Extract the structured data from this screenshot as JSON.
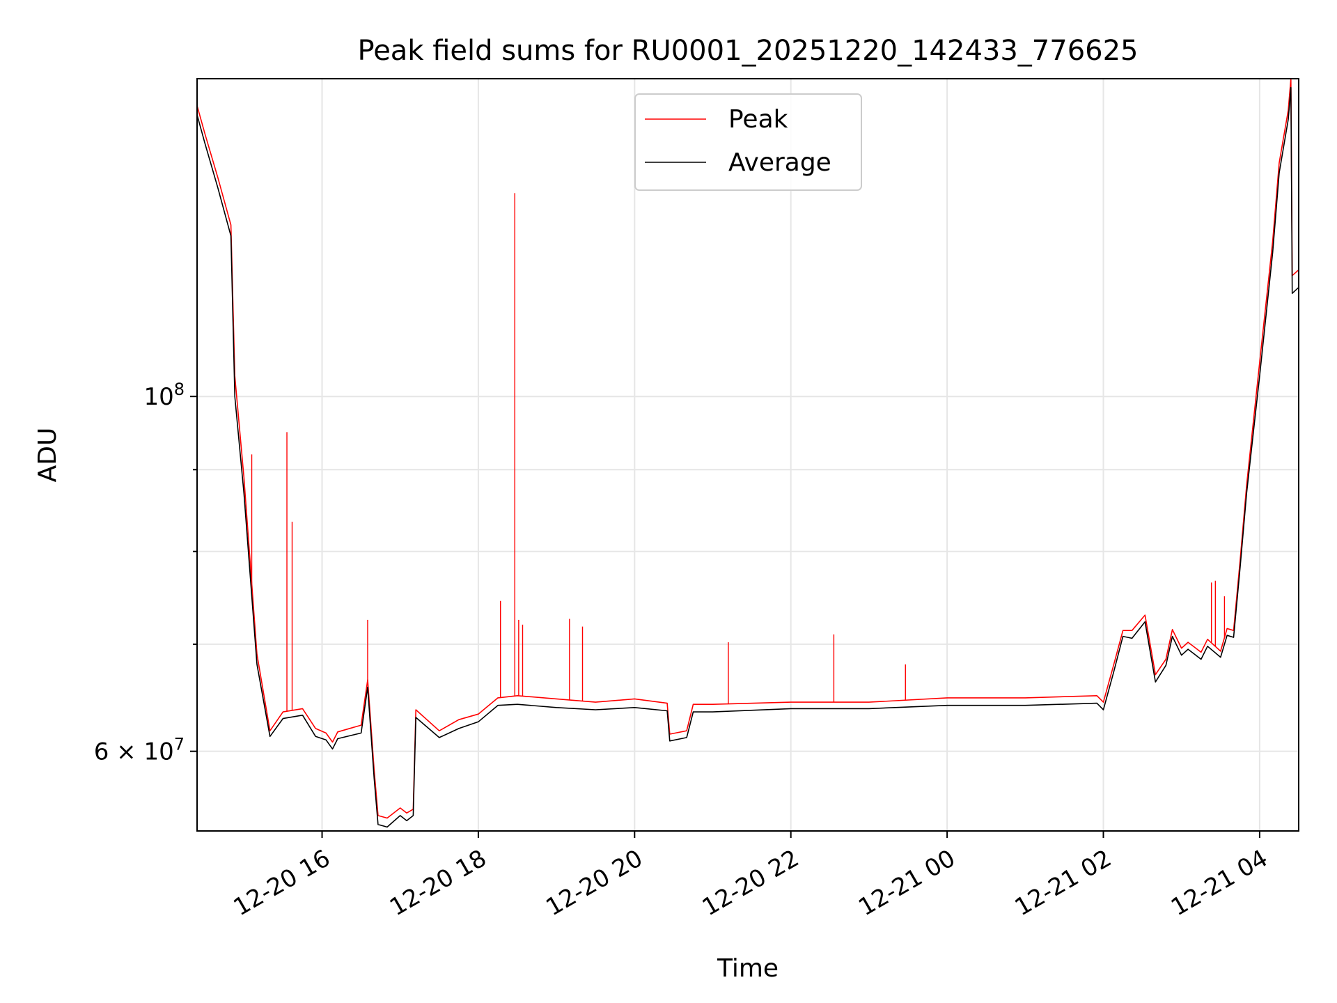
{
  "chart_data": {
    "type": "line",
    "title": "Peak field sums for RU0001_20251220_142433_776625",
    "xlabel": "Time",
    "ylabel": "ADU",
    "yscale": "log",
    "xlim": [
      "2025-12-20 14:24",
      "2025-12-21 04:30"
    ],
    "ylim": [
      53500000,
      158000000
    ],
    "grid": true,
    "legend_position": "top-center",
    "x_tick_labels": [
      "12-20 16",
      "12-20 18",
      "12-20 20",
      "12-20 22",
      "12-21 00",
      "12-21 02",
      "12-21 04"
    ],
    "x_tick_values": [
      "2025-12-20 16:00",
      "2025-12-20 18:00",
      "2025-12-20 20:00",
      "2025-12-20 22:00",
      "2025-12-21 00:00",
      "2025-12-21 02:00",
      "2025-12-21 04:00"
    ],
    "y_tick_labels": [
      {
        "base": "10",
        "exp": "8",
        "prefix": ""
      },
      {
        "base": "10",
        "exp": "7",
        "prefix": "6 × "
      }
    ],
    "y_tick_values": [
      100000000,
      60000000
    ],
    "y_minor_ticks": [
      70000000,
      80000000,
      90000000
    ],
    "series": [
      {
        "name": "Peak",
        "color": "#ff0000",
        "x": [
          "2025-12-20 14:24",
          "2025-12-20 14:30",
          "2025-12-20 14:40",
          "2025-12-20 14:50",
          "2025-12-20 14:53",
          "2025-12-20 15:00",
          "2025-12-20 15:10",
          "2025-12-20 15:20",
          "2025-12-20 15:30",
          "2025-12-20 15:45",
          "2025-12-20 15:55",
          "2025-12-20 16:03",
          "2025-12-20 16:08",
          "2025-12-20 16:12",
          "2025-12-20 16:30",
          "2025-12-20 16:35",
          "2025-12-20 16:40",
          "2025-12-20 16:43",
          "2025-12-20 16:50",
          "2025-12-20 17:00",
          "2025-12-20 17:05",
          "2025-12-20 17:10",
          "2025-12-20 17:12",
          "2025-12-20 17:30",
          "2025-12-20 17:45",
          "2025-12-20 18:00",
          "2025-12-20 18:15",
          "2025-12-20 18:30",
          "2025-12-20 19:00",
          "2025-12-20 19:30",
          "2025-12-20 20:00",
          "2025-12-20 20:25",
          "2025-12-20 20:27",
          "2025-12-20 20:40",
          "2025-12-20 20:45",
          "2025-12-20 21:00",
          "2025-12-20 22:00",
          "2025-12-20 23:00",
          "2025-12-21 00:00",
          "2025-12-21 01:00",
          "2025-12-21 01:55",
          "2025-12-21 02:00",
          "2025-12-21 02:08",
          "2025-12-21 02:15",
          "2025-12-21 02:22",
          "2025-12-21 02:32",
          "2025-12-21 02:40",
          "2025-12-21 02:48",
          "2025-12-21 02:53",
          "2025-12-21 03:00",
          "2025-12-21 03:05",
          "2025-12-21 03:15",
          "2025-12-21 03:20",
          "2025-12-21 03:30",
          "2025-12-21 03:35",
          "2025-12-21 03:40",
          "2025-12-21 03:45",
          "2025-12-21 03:50",
          "2025-12-21 04:00",
          "2025-12-21 04:10",
          "2025-12-21 04:15",
          "2025-12-21 04:22",
          "2025-12-21 04:24",
          "2025-12-21 04:25",
          "2025-12-21 04:30"
        ],
        "y": [
          152000000,
          146000000,
          137000000,
          128000000,
          103000000,
          89000000,
          69000000,
          61800000,
          63500000,
          63800000,
          62000000,
          61600000,
          60800000,
          61700000,
          62300000,
          66500000,
          58400000,
          54700000,
          54500000,
          55300000,
          54900000,
          55200000,
          63700000,
          61800000,
          62800000,
          63300000,
          64800000,
          65000000,
          64700000,
          64400000,
          64700000,
          64300000,
          61500000,
          61800000,
          64200000,
          64200000,
          64400000,
          64400000,
          64800000,
          64800000,
          65000000,
          64400000,
          68000000,
          71400000,
          71400000,
          73000000,
          67000000,
          68500000,
          71500000,
          69600000,
          70200000,
          69200000,
          70500000,
          69300000,
          71600000,
          71400000,
          79000000,
          88000000,
          105000000,
          125000000,
          140000000,
          151000000,
          158000000,
          119000000,
          120000000
        ]
      },
      {
        "name": "Average",
        "color": "#000000",
        "x": [
          "2025-12-20 14:24",
          "2025-12-20 14:30",
          "2025-12-20 14:40",
          "2025-12-20 14:50",
          "2025-12-20 14:53",
          "2025-12-20 15:00",
          "2025-12-20 15:10",
          "2025-12-20 15:20",
          "2025-12-20 15:30",
          "2025-12-20 15:45",
          "2025-12-20 15:55",
          "2025-12-20 16:03",
          "2025-12-20 16:08",
          "2025-12-20 16:12",
          "2025-12-20 16:30",
          "2025-12-20 16:35",
          "2025-12-20 16:40",
          "2025-12-20 16:43",
          "2025-12-20 16:50",
          "2025-12-20 17:00",
          "2025-12-20 17:05",
          "2025-12-20 17:10",
          "2025-12-20 17:12",
          "2025-12-20 17:30",
          "2025-12-20 17:45",
          "2025-12-20 18:00",
          "2025-12-20 18:15",
          "2025-12-20 18:30",
          "2025-12-20 19:00",
          "2025-12-20 19:30",
          "2025-12-20 20:00",
          "2025-12-20 20:25",
          "2025-12-20 20:27",
          "2025-12-20 20:40",
          "2025-12-20 20:45",
          "2025-12-20 21:00",
          "2025-12-20 22:00",
          "2025-12-20 23:00",
          "2025-12-21 00:00",
          "2025-12-21 01:00",
          "2025-12-21 01:55",
          "2025-12-21 02:00",
          "2025-12-21 02:08",
          "2025-12-21 02:15",
          "2025-12-21 02:22",
          "2025-12-21 02:32",
          "2025-12-21 02:40",
          "2025-12-21 02:48",
          "2025-12-21 02:53",
          "2025-12-21 03:00",
          "2025-12-21 03:05",
          "2025-12-21 03:15",
          "2025-12-21 03:20",
          "2025-12-21 03:30",
          "2025-12-21 03:35",
          "2025-12-21 03:40",
          "2025-12-21 03:45",
          "2025-12-21 03:50",
          "2025-12-21 04:00",
          "2025-12-21 04:10",
          "2025-12-21 04:15",
          "2025-12-21 04:22",
          "2025-12-21 04:24",
          "2025-12-21 04:25",
          "2025-12-21 04:30"
        ],
        "y": [
          150000000,
          144000000,
          135000000,
          126000000,
          100000000,
          87000000,
          68000000,
          61300000,
          62900000,
          63200000,
          61300000,
          61000000,
          60200000,
          61100000,
          61600000,
          65800000,
          57700000,
          54000000,
          53800000,
          54700000,
          54300000,
          54700000,
          63000000,
          61200000,
          62000000,
          62600000,
          64100000,
          64200000,
          63900000,
          63700000,
          63900000,
          63600000,
          60900000,
          61200000,
          63500000,
          63500000,
          63800000,
          63800000,
          64100000,
          64100000,
          64300000,
          63700000,
          67300000,
          70800000,
          70600000,
          72300000,
          66300000,
          67900000,
          70800000,
          68900000,
          69500000,
          68500000,
          69800000,
          68700000,
          70900000,
          70700000,
          78200000,
          87000000,
          103000000,
          123000000,
          138000000,
          149000000,
          156000000,
          116000000,
          117000000
        ]
      }
    ],
    "spikes": [
      {
        "series": "Peak",
        "x": "2025-12-20 15:06",
        "y": 92000000
      },
      {
        "series": "Peak",
        "x": "2025-12-20 15:33",
        "y": 95000000
      },
      {
        "series": "Peak",
        "x": "2025-12-20 15:37",
        "y": 83500000
      },
      {
        "series": "Peak",
        "x": "2025-12-20 16:35",
        "y": 72500000
      },
      {
        "series": "Peak",
        "x": "2025-12-20 18:17",
        "y": 74500000
      },
      {
        "series": "Peak",
        "x": "2025-12-20 18:28",
        "y": 134000000
      },
      {
        "series": "Peak",
        "x": "2025-12-20 18:31",
        "y": 72500000
      },
      {
        "series": "Peak",
        "x": "2025-12-20 18:34",
        "y": 72000000
      },
      {
        "series": "Peak",
        "x": "2025-12-20 19:10",
        "y": 72600000
      },
      {
        "series": "Peak",
        "x": "2025-12-20 19:20",
        "y": 71800000
      },
      {
        "series": "Peak",
        "x": "2025-12-20 21:12",
        "y": 70200000
      },
      {
        "series": "Peak",
        "x": "2025-12-20 22:33",
        "y": 71000000
      },
      {
        "series": "Peak",
        "x": "2025-12-20 23:28",
        "y": 68000000
      },
      {
        "series": "Peak",
        "x": "2025-12-21 03:23",
        "y": 76500000
      },
      {
        "series": "Peak",
        "x": "2025-12-21 03:26",
        "y": 76700000
      },
      {
        "series": "Peak",
        "x": "2025-12-21 03:33",
        "y": 75000000
      }
    ]
  }
}
